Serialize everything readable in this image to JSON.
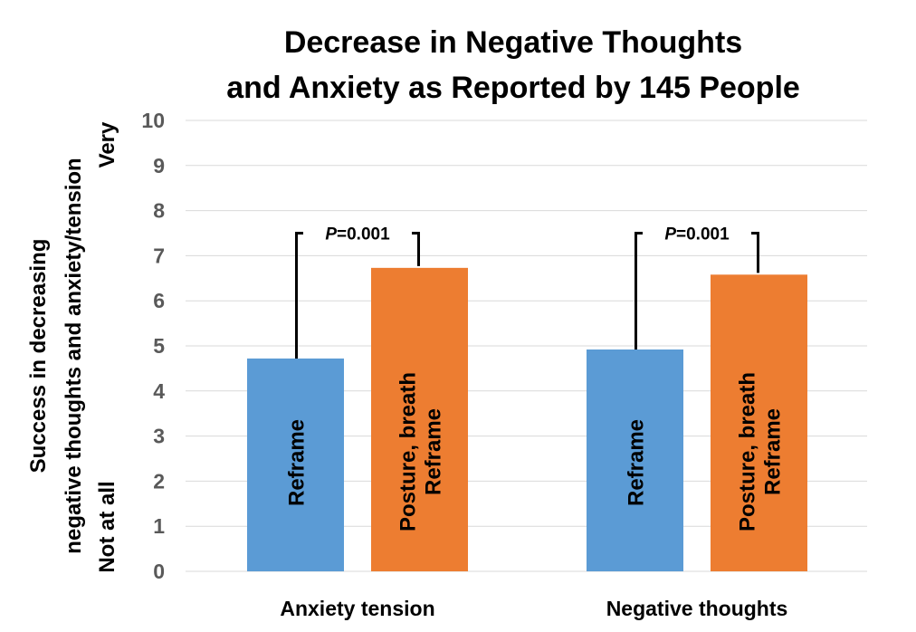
{
  "chart_data": {
    "type": "bar",
    "title_lines": [
      "Decrease in Negative Thoughts",
      "and Anxiety as Reported by 145 People"
    ],
    "ylabel": {
      "top": "Very",
      "line1": "Success in decreasing",
      "line2": "negative thoughts and anxiety/tension",
      "bottom": "Not at all"
    },
    "ylim": [
      0,
      10
    ],
    "yticks": [
      "0",
      "1",
      "2",
      "3",
      "4",
      "5",
      "6",
      "7",
      "8",
      "9",
      "10"
    ],
    "grid": true,
    "categories": [
      "Anxiety tension",
      "Negative thoughts"
    ],
    "series": [
      {
        "name": "Reframe",
        "label_lines": [
          "Reframe"
        ],
        "color": "#5b9bd5",
        "values": [
          4.72,
          4.92
        ]
      },
      {
        "name": "Posture, breath Reframe",
        "label_lines": [
          "Posture, breath",
          "Reframe"
        ],
        "color": "#ed7d31",
        "values": [
          6.73,
          6.58
        ]
      }
    ],
    "annotations": [
      {
        "category": "Anxiety tension",
        "prefix": "P",
        "text": "=0.001",
        "bracket_level": 7.5
      },
      {
        "category": "Negative thoughts",
        "prefix": "P",
        "text": "=0.001",
        "bracket_level": 7.5
      }
    ]
  }
}
